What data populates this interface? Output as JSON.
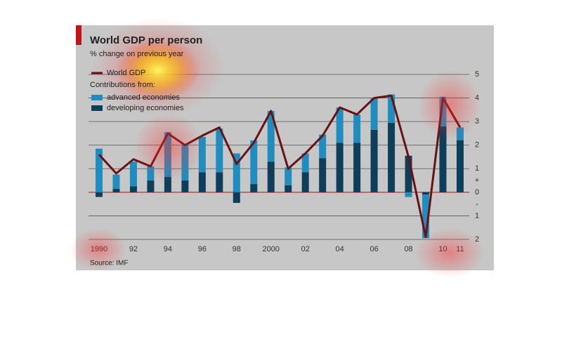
{
  "chart_data": {
    "type": "bar",
    "title": "World GDP per person",
    "subtitle": "% change on previous year",
    "legend_title": "Contributions from:",
    "source": "Source: IMF",
    "zero_signs": [
      "+",
      "-"
    ],
    "categories": [
      "1990",
      null,
      "92",
      null,
      "94",
      null,
      "96",
      null,
      "98",
      null,
      "2000",
      null,
      "02",
      null,
      "04",
      null,
      "06",
      null,
      "08",
      null,
      "10",
      "11"
    ],
    "series": [
      {
        "name": "World GDP",
        "type": "line",
        "color": "#6b1111",
        "values": [
          1.6,
          0.8,
          1.4,
          1.1,
          2.5,
          2.0,
          2.4,
          2.75,
          1.2,
          2.1,
          3.45,
          1.0,
          1.65,
          2.4,
          3.6,
          3.3,
          4.0,
          4.1,
          1.5,
          -1.9,
          4.0,
          2.75
        ]
      },
      {
        "name": "advanced economies",
        "type": "bar",
        "color": "#1f8dbf",
        "values": [
          1.85,
          0.6,
          1.05,
          0.6,
          1.9,
          1.5,
          1.5,
          1.85,
          1.65,
          1.85,
          2.15,
          0.75,
          0.8,
          1.0,
          1.5,
          1.2,
          1.35,
          1.2,
          -0.2,
          -1.85,
          1.25,
          0.55
        ]
      },
      {
        "name": "developing economies",
        "type": "bar",
        "color": "#0d3f5a",
        "values": [
          -0.2,
          0.15,
          0.25,
          0.5,
          0.65,
          0.5,
          0.85,
          0.85,
          -0.45,
          0.35,
          1.3,
          0.3,
          0.85,
          1.45,
          2.1,
          2.1,
          2.65,
          2.95,
          1.55,
          -0.1,
          2.8,
          2.2
        ]
      }
    ],
    "ylim": [
      -2,
      5
    ],
    "yticks": [
      {
        "value": -2,
        "label": "2"
      },
      {
        "value": -1,
        "label": "1"
      },
      0,
      1,
      2,
      3,
      4,
      5
    ],
    "grid": true,
    "zero_line_color": "#c0302a"
  }
}
